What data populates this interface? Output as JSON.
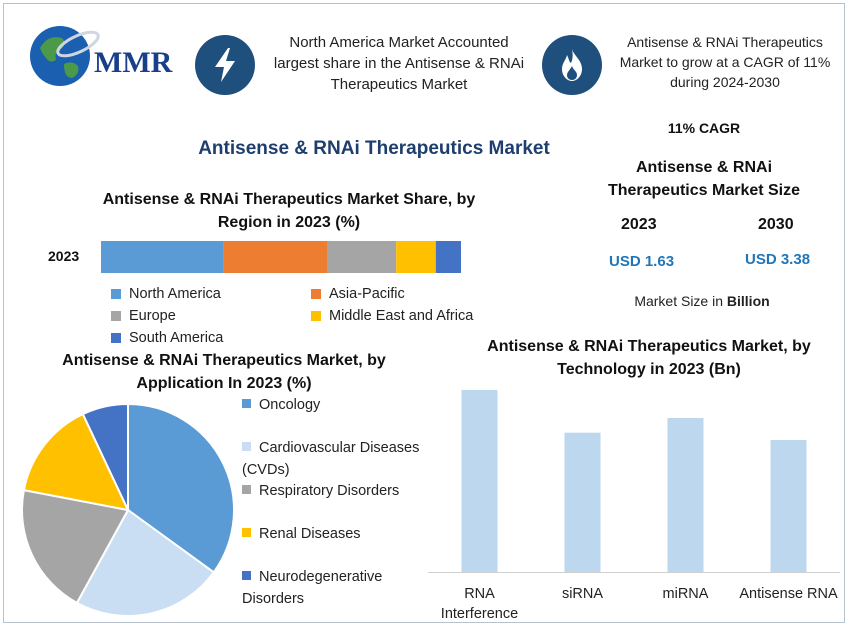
{
  "logo": {
    "text": "MMR"
  },
  "highlights": [
    {
      "icon": "lightning-icon",
      "text": "North America Market Accounted largest share in the Antisense & RNAi Therapeutics Market"
    },
    {
      "icon": "flame-icon",
      "text": "Antisense & RNAi Therapeutics Market to grow at a CAGR of 11% during 2024-2030"
    }
  ],
  "main_title": "Antisense & RNAi Therapeutics Market",
  "market_size": {
    "cagr": "11% CAGR",
    "title": "Antisense & RNAi Therapeutics Market Size",
    "year1": "2023",
    "year2": "2030",
    "value1": "USD 1.63",
    "value2": "USD 3.38",
    "note_prefix": "Market Size in ",
    "note_unit": "Billion"
  },
  "colors": {
    "north_america": "#5b9bd5",
    "asia_pacific": "#ed7d31",
    "europe": "#a5a5a5",
    "mea": "#ffc000",
    "south_america": "#4472c4",
    "oncology": "#5b9bd5",
    "cvd": "#c9def3",
    "respiratory": "#a5a5a5",
    "renal": "#ffc000",
    "neuro": "#4472c4",
    "tech_bar": "#bdd7ee"
  },
  "chart_data": [
    {
      "type": "bar",
      "orientation": "horizontal-stacked",
      "title": "Antisense & RNAi Therapeutics Market Share, by Region in 2023 (%)",
      "categories": [
        "2023"
      ],
      "series": [
        {
          "name": "North America",
          "values": [
            34
          ]
        },
        {
          "name": "Asia-Pacific",
          "values": [
            29
          ]
        },
        {
          "name": "Europe",
          "values": [
            19
          ]
        },
        {
          "name": "Middle East and Africa",
          "values": [
            11
          ]
        },
        {
          "name": "South America",
          "values": [
            7
          ]
        }
      ],
      "legend": "bottom"
    },
    {
      "type": "pie",
      "title": "Antisense & RNAi Therapeutics Market, by Application In 2023 (%)",
      "labels": [
        "Oncology",
        "Cardiovascular Diseases (CVDs)",
        "Respiratory Disorders",
        "Renal Diseases",
        "Neurodegenerative Disorders"
      ],
      "values": [
        35,
        23,
        20,
        15,
        7
      ],
      "legend": "right"
    },
    {
      "type": "bar",
      "title": "Antisense & RNAi Therapeutics Market, by Technology in 2023 (Bn)",
      "categories": [
        "RNA Interference",
        "siRNA",
        "miRNA",
        "Antisense RNA"
      ],
      "values": [
        0.52,
        0.38,
        0.42,
        0.36
      ],
      "ylim": [
        0,
        0.6
      ],
      "grid": false
    }
  ]
}
